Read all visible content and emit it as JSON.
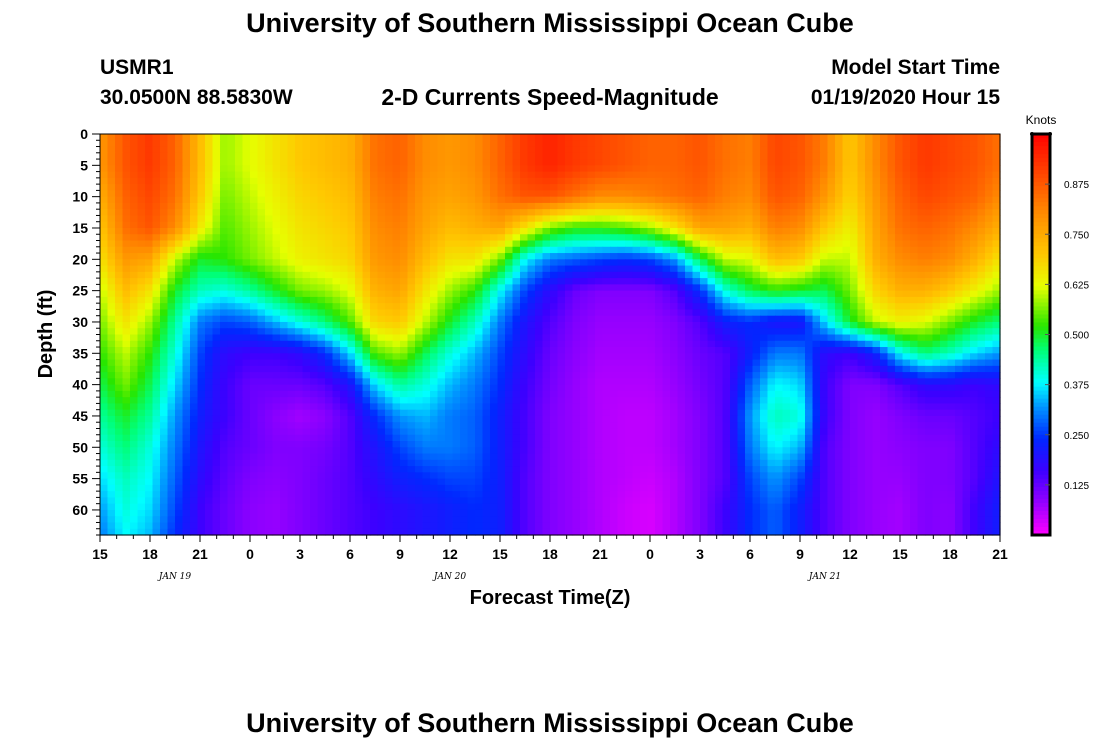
{
  "header": {
    "title": "University of Southern Mississippi Ocean Cube",
    "station": "USMR1",
    "coords": "30.0500N 88.5830W",
    "subtitle": "2-D Currents Speed-Magnitude",
    "model_label": "Model Start Time",
    "model_time": "01/19/2020 Hour 15"
  },
  "footer": {
    "title": "University of Southern Mississippi Ocean Cube"
  },
  "chart_data": {
    "type": "heatmap",
    "title": "2-D Currents Speed-Magnitude",
    "xlabel": "Forecast Time(Z)",
    "ylabel": "Depth (ft)",
    "x_ticks": [
      "15",
      "18",
      "21",
      "0",
      "3",
      "6",
      "9",
      "12",
      "15",
      "18",
      "21",
      "0",
      "3",
      "6",
      "9",
      "12",
      "15",
      "18",
      "21"
    ],
    "x_range_hours": [
      0,
      54
    ],
    "day_labels": [
      {
        "label": "JAN 19",
        "hour": 4.5
      },
      {
        "label": "JAN 20",
        "hour": 21
      },
      {
        "label": "JAN 21",
        "hour": 43.5
      }
    ],
    "y_ticks": [
      0,
      5,
      10,
      15,
      20,
      25,
      30,
      35,
      40,
      45,
      50,
      55,
      60
    ],
    "ylim": [
      0,
      64
    ],
    "y_inverted": true,
    "colorbar": {
      "unit": "Knots",
      "range": [
        0,
        1.0
      ],
      "ticks": [
        "0.125",
        "0.250",
        "0.375",
        "0.500",
        "0.625",
        "0.750",
        "0.875"
      ],
      "tick_values": [
        0.125,
        0.25,
        0.375,
        0.5,
        0.625,
        0.75,
        0.875
      ]
    },
    "grid_hours": [
      0,
      1.5,
      3,
      4.5,
      6,
      7.5,
      9,
      10.5,
      12,
      13.5,
      15,
      16.5,
      18,
      19.5,
      21,
      22.5,
      24,
      25.5,
      27,
      28.5,
      30,
      31.5,
      33,
      34.5,
      36,
      37.5,
      39,
      40.5,
      42,
      43.5,
      45,
      46.5,
      48,
      49.5,
      51,
      52.5,
      54
    ],
    "grid_depths_ft": [
      0,
      5,
      10,
      15,
      20,
      25,
      30,
      35,
      40,
      45,
      50,
      55,
      60,
      64
    ],
    "speed_knots": [
      [
        0.78,
        0.88,
        0.92,
        0.86,
        0.72,
        0.58,
        0.62,
        0.66,
        0.7,
        0.72,
        0.74,
        0.84,
        0.86,
        0.8,
        0.78,
        0.8,
        0.86,
        0.92,
        0.95,
        0.92,
        0.9,
        0.88,
        0.86,
        0.86,
        0.88,
        0.84,
        0.82,
        0.9,
        0.88,
        0.82,
        0.7,
        0.8,
        0.88,
        0.92,
        0.9,
        0.88,
        0.84
      ],
      [
        0.78,
        0.88,
        0.92,
        0.86,
        0.72,
        0.58,
        0.62,
        0.66,
        0.7,
        0.72,
        0.74,
        0.84,
        0.86,
        0.8,
        0.78,
        0.8,
        0.86,
        0.92,
        0.95,
        0.92,
        0.9,
        0.88,
        0.86,
        0.86,
        0.88,
        0.84,
        0.82,
        0.9,
        0.88,
        0.82,
        0.7,
        0.8,
        0.88,
        0.92,
        0.9,
        0.88,
        0.84
      ],
      [
        0.74,
        0.86,
        0.9,
        0.84,
        0.7,
        0.56,
        0.6,
        0.64,
        0.68,
        0.7,
        0.72,
        0.82,
        0.84,
        0.78,
        0.76,
        0.78,
        0.84,
        0.88,
        0.88,
        0.84,
        0.8,
        0.8,
        0.82,
        0.84,
        0.86,
        0.82,
        0.8,
        0.88,
        0.86,
        0.78,
        0.68,
        0.78,
        0.86,
        0.9,
        0.88,
        0.86,
        0.8
      ],
      [
        0.7,
        0.84,
        0.88,
        0.8,
        0.65,
        0.54,
        0.58,
        0.62,
        0.66,
        0.68,
        0.7,
        0.8,
        0.82,
        0.76,
        0.72,
        0.74,
        0.76,
        0.66,
        0.56,
        0.52,
        0.52,
        0.54,
        0.58,
        0.66,
        0.76,
        0.76,
        0.74,
        0.82,
        0.8,
        0.7,
        0.64,
        0.76,
        0.84,
        0.86,
        0.84,
        0.8,
        0.74
      ],
      [
        0.66,
        0.78,
        0.76,
        0.6,
        0.5,
        0.52,
        0.56,
        0.6,
        0.64,
        0.66,
        0.68,
        0.78,
        0.8,
        0.72,
        0.66,
        0.66,
        0.56,
        0.38,
        0.3,
        0.28,
        0.26,
        0.24,
        0.26,
        0.32,
        0.48,
        0.6,
        0.62,
        0.72,
        0.7,
        0.6,
        0.6,
        0.74,
        0.8,
        0.82,
        0.8,
        0.74,
        0.66
      ],
      [
        0.6,
        0.72,
        0.66,
        0.5,
        0.42,
        0.4,
        0.44,
        0.5,
        0.56,
        0.58,
        0.62,
        0.74,
        0.76,
        0.66,
        0.58,
        0.52,
        0.38,
        0.26,
        0.18,
        0.12,
        0.1,
        0.1,
        0.1,
        0.14,
        0.24,
        0.4,
        0.48,
        0.52,
        0.5,
        0.48,
        0.56,
        0.68,
        0.74,
        0.74,
        0.7,
        0.64,
        0.58
      ],
      [
        0.56,
        0.66,
        0.58,
        0.44,
        0.3,
        0.26,
        0.28,
        0.34,
        0.4,
        0.46,
        0.54,
        0.68,
        0.7,
        0.6,
        0.5,
        0.42,
        0.3,
        0.2,
        0.14,
        0.1,
        0.08,
        0.08,
        0.08,
        0.1,
        0.14,
        0.22,
        0.24,
        0.2,
        0.2,
        0.36,
        0.5,
        0.6,
        0.64,
        0.62,
        0.56,
        0.5,
        0.46
      ],
      [
        0.52,
        0.6,
        0.52,
        0.4,
        0.26,
        0.18,
        0.16,
        0.16,
        0.18,
        0.24,
        0.36,
        0.54,
        0.58,
        0.48,
        0.4,
        0.34,
        0.26,
        0.18,
        0.12,
        0.09,
        0.07,
        0.07,
        0.07,
        0.09,
        0.12,
        0.14,
        0.22,
        0.3,
        0.3,
        0.18,
        0.16,
        0.22,
        0.38,
        0.46,
        0.42,
        0.36,
        0.32
      ],
      [
        0.48,
        0.56,
        0.48,
        0.36,
        0.24,
        0.16,
        0.12,
        0.12,
        0.12,
        0.14,
        0.2,
        0.36,
        0.44,
        0.4,
        0.34,
        0.3,
        0.24,
        0.16,
        0.11,
        0.08,
        0.06,
        0.06,
        0.06,
        0.08,
        0.11,
        0.14,
        0.28,
        0.38,
        0.36,
        0.16,
        0.1,
        0.1,
        0.14,
        0.18,
        0.18,
        0.16,
        0.18
      ],
      [
        0.44,
        0.5,
        0.44,
        0.32,
        0.22,
        0.16,
        0.12,
        0.09,
        0.07,
        0.09,
        0.14,
        0.24,
        0.32,
        0.34,
        0.3,
        0.28,
        0.22,
        0.15,
        0.1,
        0.08,
        0.06,
        0.05,
        0.05,
        0.07,
        0.1,
        0.14,
        0.32,
        0.42,
        0.4,
        0.16,
        0.1,
        0.08,
        0.1,
        0.12,
        0.12,
        0.14,
        0.16
      ],
      [
        0.4,
        0.46,
        0.4,
        0.3,
        0.2,
        0.14,
        0.12,
        0.1,
        0.1,
        0.11,
        0.14,
        0.2,
        0.26,
        0.3,
        0.3,
        0.28,
        0.22,
        0.15,
        0.1,
        0.08,
        0.06,
        0.05,
        0.05,
        0.07,
        0.1,
        0.14,
        0.3,
        0.38,
        0.34,
        0.14,
        0.1,
        0.08,
        0.09,
        0.1,
        0.1,
        0.14,
        0.18
      ],
      [
        0.36,
        0.42,
        0.38,
        0.28,
        0.18,
        0.13,
        0.1,
        0.09,
        0.1,
        0.12,
        0.14,
        0.18,
        0.22,
        0.24,
        0.26,
        0.26,
        0.22,
        0.14,
        0.1,
        0.08,
        0.06,
        0.05,
        0.04,
        0.06,
        0.1,
        0.14,
        0.26,
        0.32,
        0.26,
        0.14,
        0.1,
        0.08,
        0.08,
        0.1,
        0.1,
        0.14,
        0.2
      ],
      [
        0.32,
        0.4,
        0.36,
        0.26,
        0.16,
        0.12,
        0.09,
        0.08,
        0.1,
        0.12,
        0.14,
        0.16,
        0.18,
        0.2,
        0.22,
        0.24,
        0.22,
        0.14,
        0.1,
        0.08,
        0.06,
        0.04,
        0.03,
        0.06,
        0.1,
        0.16,
        0.24,
        0.28,
        0.22,
        0.14,
        0.1,
        0.08,
        0.07,
        0.1,
        0.09,
        0.16,
        0.22
      ],
      [
        0.3,
        0.38,
        0.34,
        0.24,
        0.16,
        0.12,
        0.09,
        0.08,
        0.1,
        0.12,
        0.14,
        0.16,
        0.18,
        0.2,
        0.22,
        0.24,
        0.22,
        0.14,
        0.1,
        0.08,
        0.06,
        0.04,
        0.03,
        0.06,
        0.1,
        0.16,
        0.24,
        0.28,
        0.22,
        0.14,
        0.1,
        0.08,
        0.07,
        0.1,
        0.09,
        0.16,
        0.22
      ]
    ]
  }
}
